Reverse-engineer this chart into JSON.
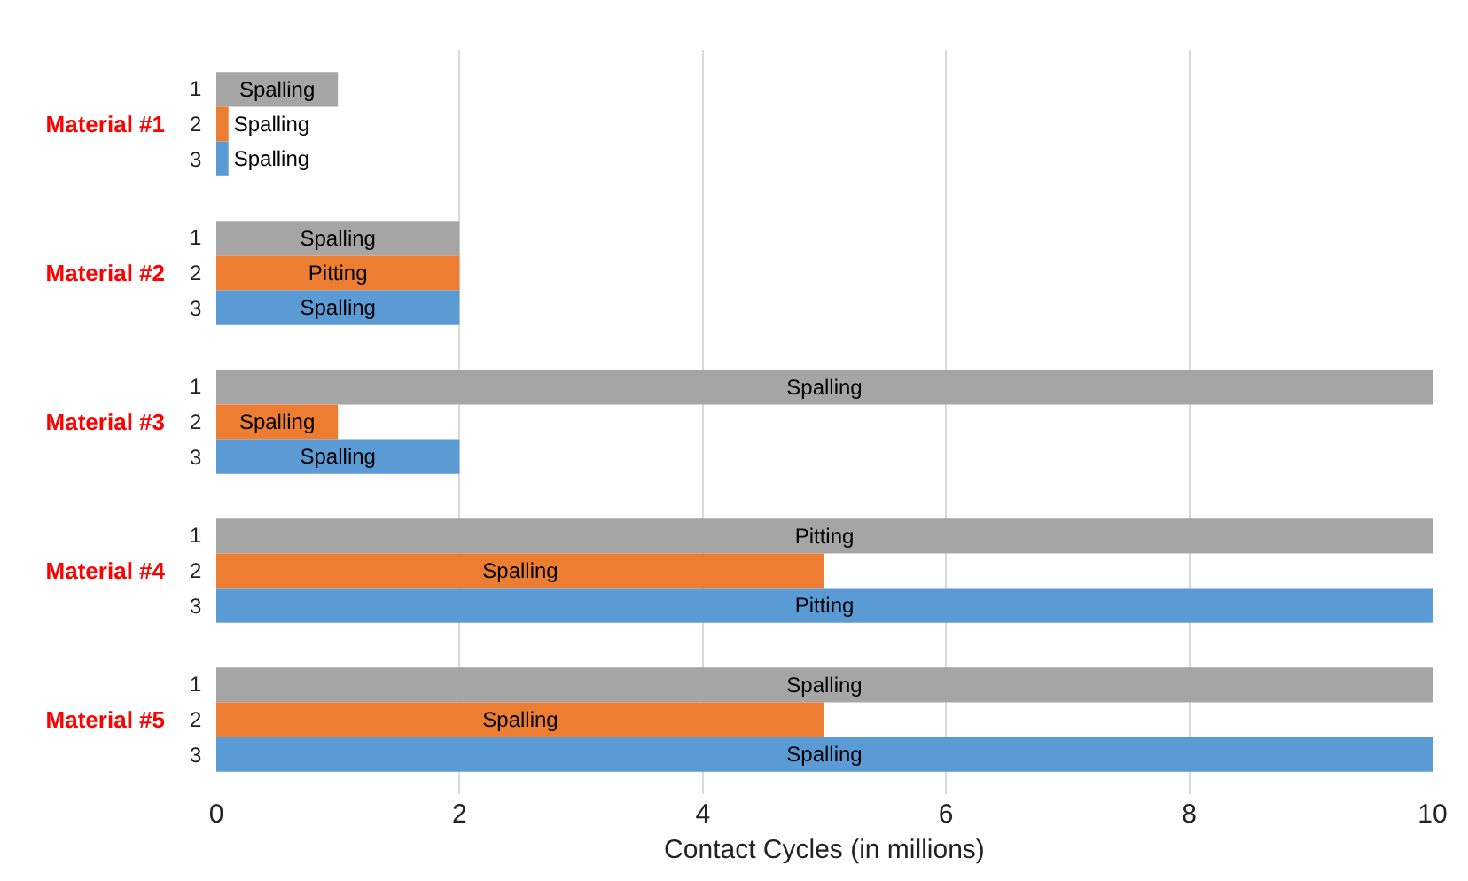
{
  "chart_data": {
    "type": "bar",
    "orientation": "horizontal",
    "xlabel": "Contact Cycles (in millions)",
    "categories": [
      "Material #1",
      "Material #2",
      "Material #3",
      "Material #4",
      "Material #5"
    ],
    "series": [
      {
        "name": "1",
        "color": "#a5a5a5",
        "values": [
          1,
          2,
          10,
          10,
          10
        ],
        "value_labels": [
          "Spalling",
          "Spalling",
          "Spalling",
          "Pitting",
          "Spalling"
        ]
      },
      {
        "name": "2",
        "color": "#ed7d31",
        "values": [
          0.1,
          2,
          1,
          5,
          5
        ],
        "value_labels": [
          "Spalling",
          "Pitting",
          "Spalling",
          "Spalling",
          "Spalling"
        ]
      },
      {
        "name": "3",
        "color": "#5b9bd5",
        "values": [
          0.1,
          2,
          2,
          10,
          10
        ],
        "value_labels": [
          "Spalling",
          "Spalling",
          "Spalling",
          "Pitting",
          "Spalling"
        ]
      }
    ],
    "xlim": [
      0,
      10
    ],
    "xticks": [
      0,
      2,
      4,
      6,
      8,
      10
    ],
    "grid": "x",
    "legend": false
  }
}
